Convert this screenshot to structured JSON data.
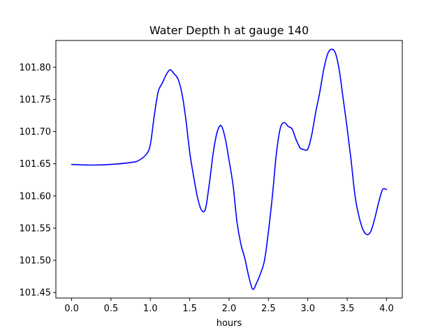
{
  "chart_data": {
    "type": "line",
    "title": "Water Depth h at gauge 140",
    "xlabel": "hours",
    "ylabel": "",
    "xlim": [
      -0.2,
      4.2
    ],
    "ylim": [
      101.4415,
      101.8415
    ],
    "xticks": [
      0.0,
      0.5,
      1.0,
      1.5,
      2.0,
      2.5,
      3.0,
      3.5,
      4.0
    ],
    "xtick_labels": [
      "0.0",
      "0.5",
      "1.0",
      "1.5",
      "2.0",
      "2.5",
      "3.0",
      "3.5",
      "4.0"
    ],
    "yticks": [
      101.45,
      101.5,
      101.55,
      101.6,
      101.65,
      101.7,
      101.75,
      101.8
    ],
    "ytick_labels": [
      "101.45",
      "101.50",
      "101.55",
      "101.60",
      "101.65",
      "101.70",
      "101.75",
      "101.80"
    ],
    "grid": false,
    "legend": "none",
    "series": [
      {
        "color": "#0000ff",
        "x": [
          0.0,
          0.25,
          0.5,
          0.75,
          0.85,
          0.95,
          1.0,
          1.05,
          1.1,
          1.15,
          1.2,
          1.25,
          1.3,
          1.35,
          1.4,
          1.45,
          1.5,
          1.55,
          1.6,
          1.65,
          1.7,
          1.75,
          1.8,
          1.85,
          1.9,
          1.95,
          2.0,
          2.05,
          2.1,
          2.15,
          2.2,
          2.25,
          2.3,
          2.35,
          2.4,
          2.45,
          2.5,
          2.55,
          2.6,
          2.65,
          2.7,
          2.75,
          2.8,
          2.85,
          2.9,
          2.95,
          3.0,
          3.05,
          3.1,
          3.15,
          3.2,
          3.25,
          3.3,
          3.35,
          3.4,
          3.45,
          3.5,
          3.55,
          3.6,
          3.65,
          3.7,
          3.75,
          3.8,
          3.85,
          3.9,
          3.95,
          4.0
        ],
        "y": [
          101.649,
          101.648,
          101.649,
          101.652,
          101.655,
          101.665,
          101.68,
          101.725,
          101.762,
          101.775,
          101.788,
          101.796,
          101.79,
          101.782,
          101.76,
          101.72,
          101.668,
          101.63,
          101.597,
          101.578,
          101.58,
          101.62,
          101.668,
          101.7,
          101.709,
          101.69,
          101.655,
          101.617,
          101.56,
          101.525,
          101.503,
          101.475,
          101.455,
          101.465,
          101.48,
          101.5,
          101.545,
          101.6,
          101.665,
          101.705,
          101.714,
          101.708,
          101.704,
          101.688,
          101.675,
          101.672,
          101.673,
          101.695,
          101.73,
          101.76,
          101.795,
          101.82,
          101.828,
          101.822,
          101.795,
          101.75,
          101.705,
          101.655,
          101.6,
          101.568,
          101.548,
          101.54,
          101.545,
          101.565,
          101.59,
          101.61,
          101.61
        ]
      }
    ]
  }
}
